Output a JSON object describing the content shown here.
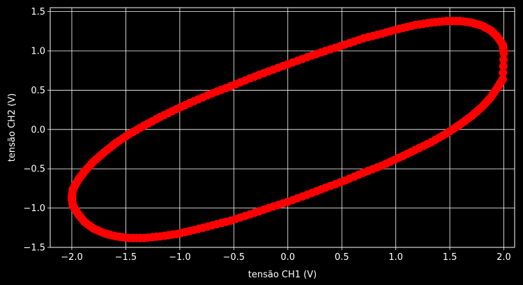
{
  "chart_data": {
    "type": "scatter",
    "xlabel": "tensão CH1 (V)",
    "ylabel": "tensão CH2 (V)",
    "xlim": [
      -2.2,
      2.1
    ],
    "ylim": [
      -1.5,
      1.55
    ],
    "xticks": [
      -2.0,
      -1.5,
      -1.0,
      -0.5,
      0.0,
      0.5,
      1.0,
      1.5,
      2.0
    ],
    "yticks": [
      -1.5,
      -1.0,
      -0.5,
      0.0,
      0.5,
      1.0,
      1.5
    ],
    "xtick_labels": [
      "−2.0",
      "−1.5",
      "−1.0",
      "−0.5",
      "0.0",
      "0.5",
      "1.0",
      "1.5",
      "2.0"
    ],
    "ytick_labels": [
      "−1.5",
      "−1.0",
      "−0.5",
      "0.0",
      "0.5",
      "1.0",
      "1.5"
    ],
    "grid": true,
    "background": "#000000",
    "marker_color": "#ff0000",
    "grid_color": "#ffffff",
    "text_color": "#ffffff",
    "series": [
      {
        "x": [
          2.0,
          1.99,
          1.94,
          1.88,
          1.8,
          1.7,
          1.59,
          1.47,
          1.33,
          1.18,
          1.03,
          0.87,
          0.7,
          0.53,
          0.35,
          0.18,
          0.0,
          -0.18,
          -0.35,
          -0.53,
          -0.7,
          -0.87,
          -1.03,
          -1.18,
          -1.33,
          -1.47,
          -1.59,
          -1.7,
          -1.8,
          -1.88,
          -1.94,
          -1.99,
          -2.0,
          -1.99,
          -1.94,
          -1.88,
          -1.8,
          -1.7,
          -1.59,
          -1.47,
          -1.33,
          -1.18,
          -1.03,
          -0.87,
          -0.7,
          -0.53,
          -0.35,
          -0.18,
          0.0,
          0.18,
          0.35,
          0.53,
          0.7,
          0.87,
          1.03,
          1.18,
          1.33,
          1.47,
          1.59,
          1.7,
          1.8,
          1.88,
          1.94,
          1.99
        ],
        "y": [
          0.97,
          1.08,
          1.18,
          1.26,
          1.32,
          1.36,
          1.38,
          1.38,
          1.36,
          1.33,
          1.28,
          1.22,
          1.16,
          1.08,
          1.0,
          0.92,
          0.83,
          0.74,
          0.65,
          0.55,
          0.46,
          0.36,
          0.26,
          0.16,
          0.05,
          -0.06,
          -0.17,
          -0.29,
          -0.41,
          -0.53,
          -0.64,
          -0.76,
          -0.87,
          -0.97,
          -1.08,
          -1.18,
          -1.26,
          -1.32,
          -1.36,
          -1.38,
          -1.38,
          -1.36,
          -1.33,
          -1.28,
          -1.22,
          -1.16,
          -1.08,
          -1.0,
          -0.92,
          -0.83,
          -0.74,
          -0.65,
          -0.55,
          -0.46,
          -0.36,
          -0.26,
          -0.16,
          -0.05,
          0.06,
          0.17,
          0.29,
          0.41,
          0.53,
          0.64
        ]
      }
    ]
  }
}
